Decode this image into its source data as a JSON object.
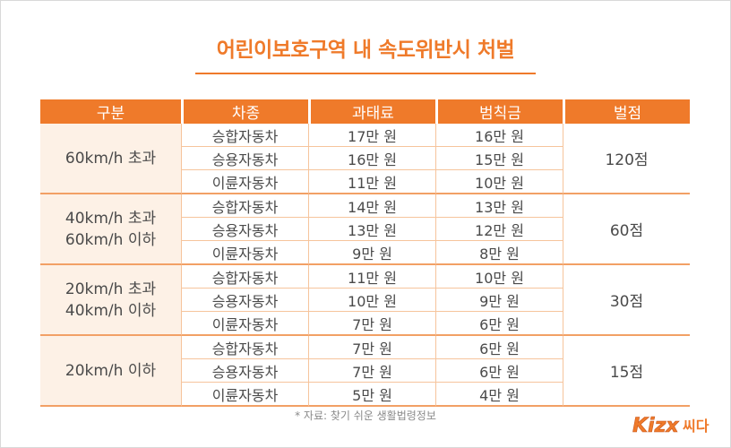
{
  "title": "어린이보호구역 내 속도위반시 처벌",
  "table": {
    "headers": [
      "구분",
      "차종",
      "과태료",
      "범칙금",
      "벌점"
    ],
    "groups": [
      {
        "label_lines": [
          "60km/h 초과"
        ],
        "points": "120점",
        "rows": [
          {
            "vehicle": "승합자동차",
            "fine": "17만 원",
            "penalty": "16만 원"
          },
          {
            "vehicle": "승용자동차",
            "fine": "16만 원",
            "penalty": "15만 원"
          },
          {
            "vehicle": "이륜자동차",
            "fine": "11만 원",
            "penalty": "10만 원"
          }
        ]
      },
      {
        "label_lines": [
          "40km/h 초과",
          "60km/h 이하"
        ],
        "points": "60점",
        "rows": [
          {
            "vehicle": "승합자동차",
            "fine": "14만 원",
            "penalty": "13만 원"
          },
          {
            "vehicle": "승용자동차",
            "fine": "13만 원",
            "penalty": "12만 원"
          },
          {
            "vehicle": "이륜자동차",
            "fine": "9만 원",
            "penalty": "8만 원"
          }
        ]
      },
      {
        "label_lines": [
          "20km/h 초과",
          "40km/h 이하"
        ],
        "points": "30점",
        "rows": [
          {
            "vehicle": "승합자동차",
            "fine": "11만 원",
            "penalty": "10만 원"
          },
          {
            "vehicle": "승용자동차",
            "fine": "10만 원",
            "penalty": "9만 원"
          },
          {
            "vehicle": "이륜자동차",
            "fine": "7만 원",
            "penalty": "6만 원"
          }
        ]
      },
      {
        "label_lines": [
          "20km/h 이하"
        ],
        "points": "15점",
        "rows": [
          {
            "vehicle": "승합자동차",
            "fine": "7만 원",
            "penalty": "6만 원"
          },
          {
            "vehicle": "승용자동차",
            "fine": "7만 원",
            "penalty": "6만 원"
          },
          {
            "vehicle": "이륜자동차",
            "fine": "5만 원",
            "penalty": "4만 원"
          }
        ]
      }
    ]
  },
  "source": "* 자료: 찾기 쉬운 생활법령정보",
  "logo": {
    "text": "Kizx 씨다",
    "icon": "kizmom-logo"
  },
  "colors": {
    "accent": "#ef7a2a",
    "group_bg": "#fdf1e6",
    "grid": "#f6c49c"
  }
}
